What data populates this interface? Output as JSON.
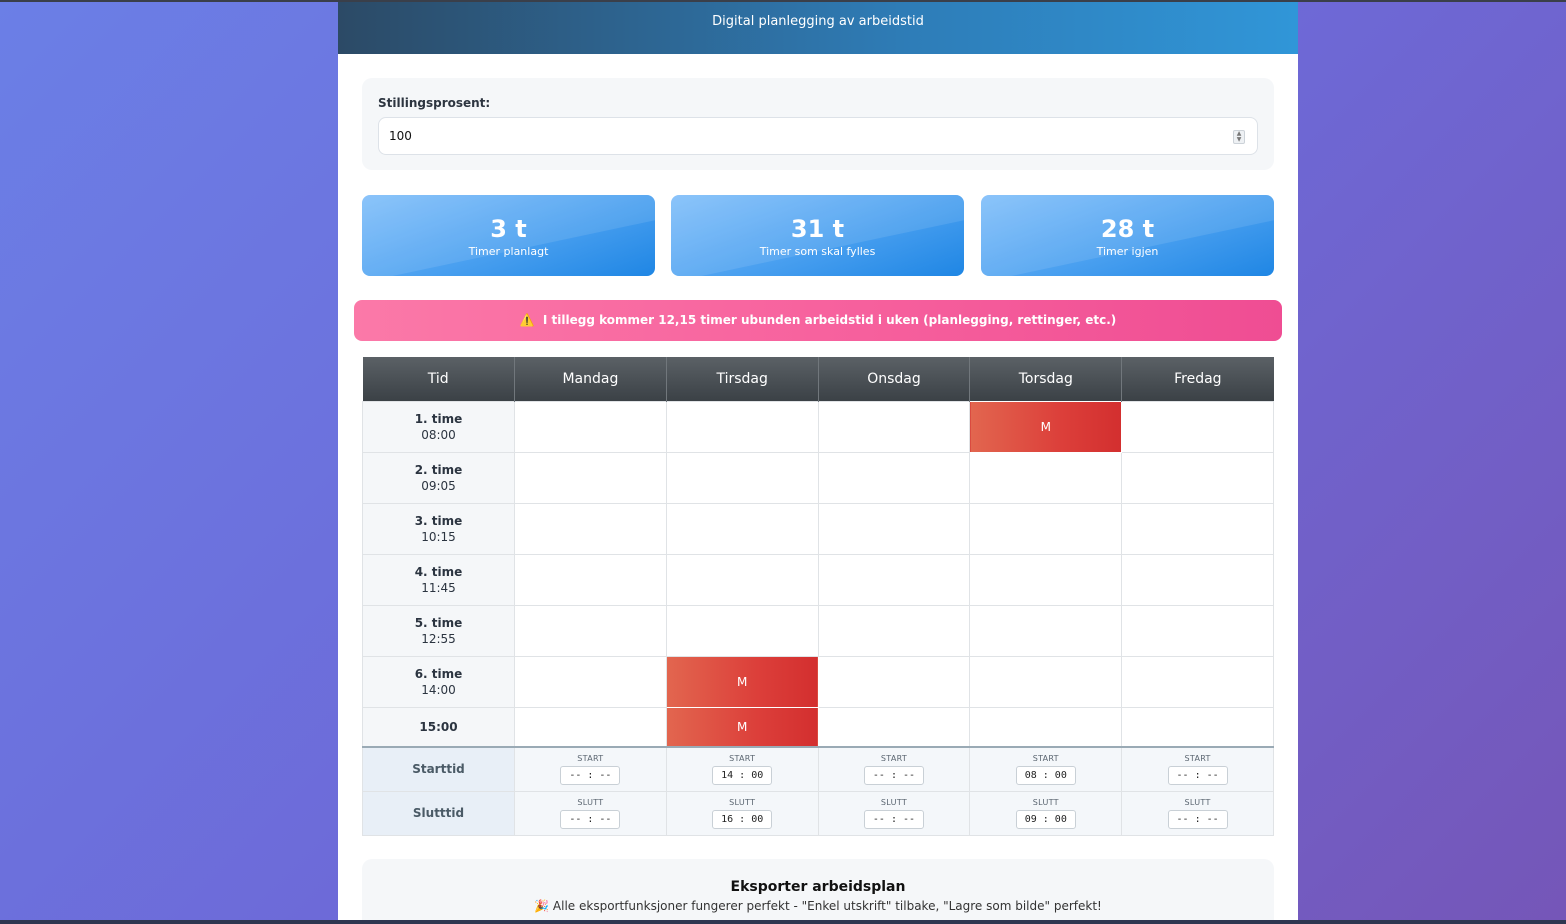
{
  "header": {
    "subtitle": "Digital planlegging av arbeidstid"
  },
  "settings": {
    "label": "Stillingsprosent:",
    "value": "100"
  },
  "stats": [
    {
      "value": "3 t",
      "label": "Timer planlagt"
    },
    {
      "value": "31 t",
      "label": "Timer som skal fylles"
    },
    {
      "value": "28 t",
      "label": "Timer igjen"
    }
  ],
  "alert": {
    "icon": "⚠️",
    "text": "I tillegg kommer 12,15 timer ubunden arbeidstid i uken (planlegging, rettinger, etc.)"
  },
  "schedule": {
    "headers": [
      "Tid",
      "Mandag",
      "Tirsdag",
      "Onsdag",
      "Torsdag",
      "Fredag"
    ],
    "slots": [
      {
        "name": "1. time",
        "time": "08:00",
        "cells": [
          "",
          "",
          "",
          "M",
          ""
        ]
      },
      {
        "name": "2. time",
        "time": "09:05",
        "cells": [
          "",
          "",
          "",
          "",
          ""
        ]
      },
      {
        "name": "3. time",
        "time": "10:15",
        "cells": [
          "",
          "",
          "",
          "",
          ""
        ]
      },
      {
        "name": "4. time",
        "time": "11:45",
        "cells": [
          "",
          "",
          "",
          "",
          ""
        ]
      },
      {
        "name": "5. time",
        "time": "12:55",
        "cells": [
          "",
          "",
          "",
          "",
          ""
        ]
      },
      {
        "name": "6. time",
        "time": "14:00",
        "cells": [
          "",
          "M",
          "",
          "",
          ""
        ]
      },
      {
        "name": "15:00",
        "time": "",
        "cells": [
          "",
          "M",
          "",
          "",
          ""
        ]
      }
    ],
    "starttid": {
      "label": "Starttid",
      "small": "START",
      "values": [
        "-- : --",
        "14 : 00",
        "-- : --",
        "08 : 00",
        "-- : --"
      ]
    },
    "slutttid": {
      "label": "Slutttid",
      "small": "SLUTT",
      "values": [
        "-- : --",
        "16 : 00",
        "-- : --",
        "09 : 00",
        "-- : --"
      ]
    }
  },
  "export": {
    "title": "Eksporter arbeidsplan",
    "icon": "🎉",
    "note": "Alle eksportfunksjoner fungerer perfekt - \"Enkel utskrift\" tilbake, \"Lagre som bilde\" perfekt!"
  },
  "colors": {
    "header": "#2e7db8",
    "booked": "#d32f2f",
    "alert": "#f7629e",
    "stat": "#4aa0f0"
  }
}
